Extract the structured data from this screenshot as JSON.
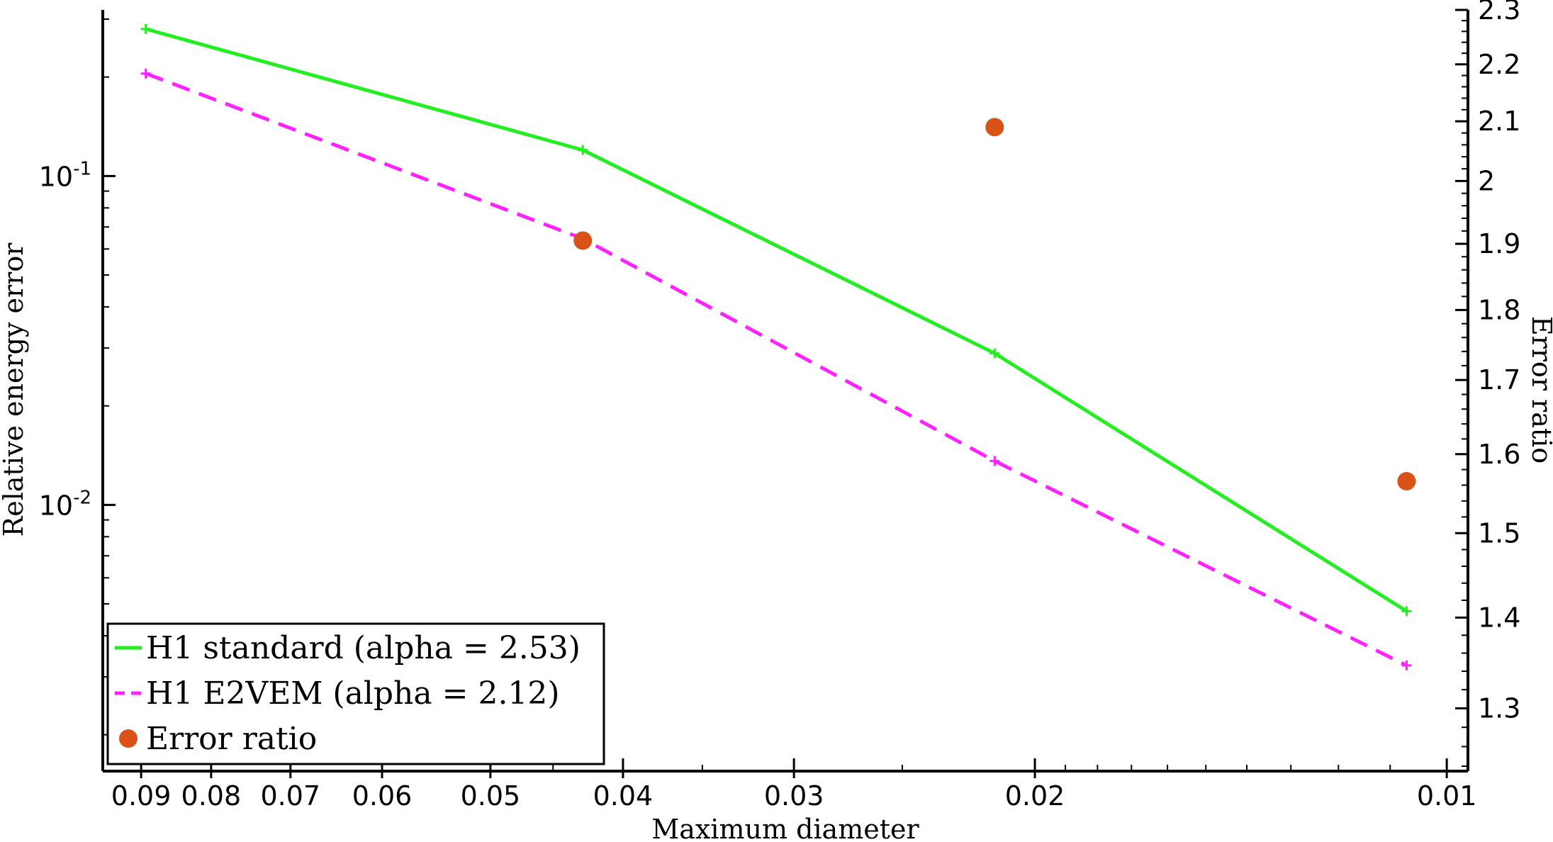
{
  "chart_data": {
    "type": "line",
    "xlabel": "Maximum diameter",
    "ylabel_left": "Relative energy error",
    "ylabel_right": "Error ratio",
    "x_scale": "log",
    "x_reversed": true,
    "xlim": [
      0.096,
      0.00965
    ],
    "x_ticks": [
      {
        "value": 0.09,
        "label": "0.09"
      },
      {
        "value": 0.08,
        "label": "0.08"
      },
      {
        "value": 0.07,
        "label": "0.07"
      },
      {
        "value": 0.06,
        "label": "0.06"
      },
      {
        "value": 0.05,
        "label": "0.05"
      },
      {
        "value": 0.04,
        "label": "0.04"
      },
      {
        "value": 0.03,
        "label": "0.03"
      },
      {
        "value": 0.02,
        "label": "0.02"
      },
      {
        "value": 0.01,
        "label": "0.01"
      }
    ],
    "y_left_scale": "log",
    "y_left_lim": [
      0.00155,
      0.32
    ],
    "y_left_ticks": [
      {
        "value": 0.1,
        "base": "10",
        "exp": "-1"
      },
      {
        "value": 0.01,
        "base": "10",
        "exp": "-2"
      }
    ],
    "y_right_scale": "log",
    "y_right_lim": [
      1.235,
      2.3
    ],
    "y_right_ticks": [
      "1.3",
      "1.4",
      "1.5",
      "1.6",
      "1.7",
      "1.8",
      "1.9",
      "2",
      "2.1",
      "2.2",
      "2.3"
    ],
    "series": [
      {
        "name": "H1 standard (alpha = 2.53)",
        "axis": "left",
        "style": "solid",
        "color": "#22ee22",
        "x": [
          0.0893,
          0.0428,
          0.0214,
          0.0107
        ],
        "y": [
          0.28,
          0.12,
          0.0289,
          0.00475
        ]
      },
      {
        "name": "H1 E2VEM (alpha = 2.12)",
        "axis": "left",
        "style": "dashed",
        "color": "#ff22ff",
        "x": [
          0.0893,
          0.0428,
          0.0214,
          0.0107
        ],
        "y": [
          0.205,
          0.0645,
          0.0136,
          0.00325
        ]
      },
      {
        "name": "Error ratio",
        "axis": "right",
        "style": "marker",
        "color": "#d95319",
        "x": [
          0.0428,
          0.0214,
          0.0107
        ],
        "y": [
          1.905,
          2.09,
          1.565
        ]
      }
    ],
    "legend_position": "bottom-left",
    "grid": false
  }
}
